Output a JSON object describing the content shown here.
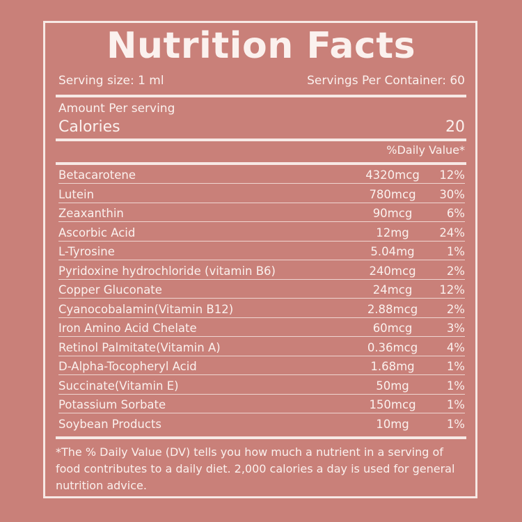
{
  "title": "Nutrition Facts",
  "serving_size": "Serving size: 1 ml",
  "servings_per_container": "Servings Per Container: 60",
  "amount_per_serving": "Amount Per serving",
  "calories_label": "Calories",
  "calories_value": "20",
  "daily_value_header": "%Daily Value*",
  "nutrients": [
    {
      "name": "Betacarotene",
      "amount": "4320mcg",
      "dv": "12%"
    },
    {
      "name": "Lutein",
      "amount": "780mcg",
      "dv": "30%"
    },
    {
      "name": "Zeaxanthin",
      "amount": "90mcg",
      "dv": "6%"
    },
    {
      "name": "Ascorbic Acid",
      "amount": "12mg",
      "dv": "24%"
    },
    {
      "name": "L-Tyrosine",
      "amount": "5.04mg",
      "dv": "1%"
    },
    {
      "name": "Pyridoxine hydrochloride (vitamin B6)",
      "amount": "240mcg",
      "dv": "2%"
    },
    {
      "name": "Copper Gluconate",
      "amount": "24mcg",
      "dv": "12%"
    },
    {
      "name": "Cyanocobalamin(Vitamin B12)",
      "amount": "2.88mcg",
      "dv": "2%"
    },
    {
      "name": "Iron Amino Acid Chelate",
      "amount": "60mcg",
      "dv": "3%"
    },
    {
      "name": "Retinol Palmitate(Vitamin A)",
      "amount": "0.36mcg",
      "dv": "4%"
    },
    {
      "name": "D-Alpha-Tocopheryl Acid",
      "amount": "1.68mg",
      "dv": "1%"
    },
    {
      "name": "Succinate(Vitamin E)",
      "amount": "50mg",
      "dv": "1%"
    },
    {
      "name": "Potassium Sorbate",
      "amount": "150mcg",
      "dv": "1%"
    },
    {
      "name": "Soybean Products",
      "amount": "10mg",
      "dv": "1%"
    }
  ],
  "footnote": "*The % Daily Value (DV) tells you how much a nutrient in a serving of food contributes to a daily diet. 2,000 calories a day is used for general nutrition advice."
}
